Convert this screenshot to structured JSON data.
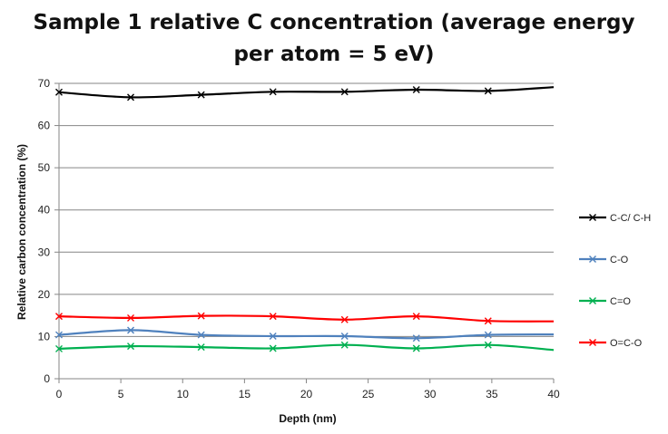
{
  "chart_data": {
    "type": "line",
    "title_lines": [
      "Sample 1 relative C concentration (average energy",
      "per atom = 5 eV)"
    ],
    "xlabel": "Depth (nm)",
    "ylabel": "Relative carbon concentration (%)",
    "xlim": [
      0,
      40
    ],
    "ylim": [
      0,
      70
    ],
    "xticks": [
      0,
      5,
      10,
      15,
      20,
      25,
      30,
      35,
      40
    ],
    "yticks": [
      0,
      10,
      20,
      30,
      40,
      50,
      60,
      70
    ],
    "grid": "horizontal",
    "legend_position": "right",
    "x": [
      0,
      5.8,
      11.5,
      17.3,
      23.1,
      28.9,
      34.7,
      40
    ],
    "series": [
      {
        "name": "C-C/ C-H",
        "color": "#000000",
        "values": [
          67.9,
          66.7,
          67.3,
          68.0,
          68.0,
          68.5,
          68.2,
          69.1
        ]
      },
      {
        "name": "C-O",
        "color": "#4f81bd",
        "values": [
          10.4,
          11.5,
          10.4,
          10.1,
          10.1,
          9.6,
          10.4,
          10.5
        ]
      },
      {
        "name": "C=O",
        "color": "#00b050",
        "values": [
          7.1,
          7.7,
          7.5,
          7.2,
          8.0,
          7.2,
          8.0,
          6.8
        ]
      },
      {
        "name": "O=C-O",
        "color": "#ff0000",
        "values": [
          14.8,
          14.4,
          14.9,
          14.8,
          14.0,
          14.8,
          13.7,
          13.6
        ]
      }
    ]
  }
}
